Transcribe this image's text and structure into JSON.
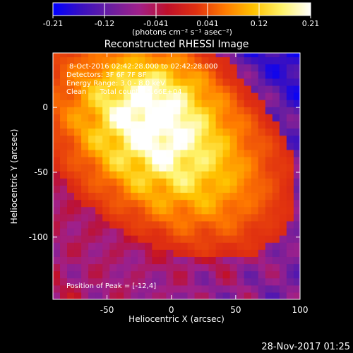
{
  "chart_data": {
    "type": "heatmap",
    "title": "Reconstructed RHESSI Image",
    "xlabel": "Heliocentric X (arcsec)",
    "ylabel": "Heliocentric Y (arcsec)",
    "xlim": [
      -92,
      100
    ],
    "ylim": [
      -148,
      42
    ],
    "xticks": [
      -50,
      0,
      50,
      100
    ],
    "yticks": [
      0,
      -50,
      -100
    ],
    "colorbar": {
      "range": [
        -0.21,
        0.21
      ],
      "ticks": [
        "-0.21",
        "-0.12",
        "-0.041",
        "0.041",
        "0.12",
        "0.21"
      ],
      "label": "(photons cm⁻² s⁻¹ asec⁻²)",
      "colormap": [
        "#0000ff",
        "#3a10c0",
        "#6a1ea0",
        "#a0208a",
        "#c0102a",
        "#e03010",
        "#ff7a00",
        "#ffc200",
        "#fff36a",
        "#ffffff"
      ]
    },
    "annotations": [
      "8-Oct-2016 02:42:28.000 to 02:42:28.000",
      "Detectors: 3F 6F 7F 8F",
      "Energy Range: 3.0 - 8.0 keV",
      "Clean      Total counts: 5.66E+04"
    ],
    "peak_label": "Position of Peak = [-12,4]",
    "peak": {
      "x": -12,
      "y": 4,
      "value": 0.21
    },
    "source": {
      "angle_deg": -36,
      "sigma_long": 120,
      "sigma_short": 38,
      "center_x": -8,
      "center_y": -25
    }
  },
  "footer": {
    "date": "28-Nov-2017 01:25"
  }
}
